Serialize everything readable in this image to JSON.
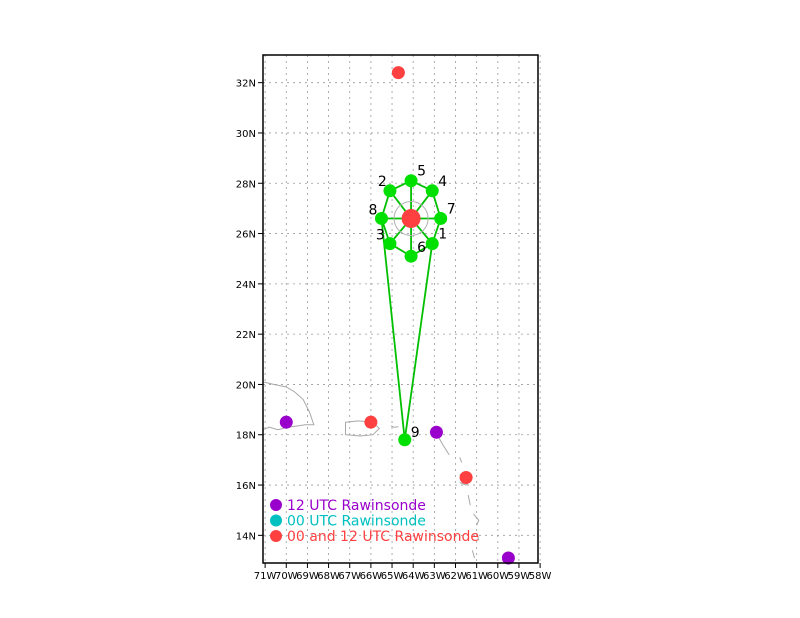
{
  "map": {
    "lat_range": [
      12.9,
      33.1
    ],
    "lon_range": [
      -71.1,
      -58.1
    ],
    "grid": true,
    "lat_ticks": [
      {
        "value": 14,
        "label": "14N"
      },
      {
        "value": 16,
        "label": "16N"
      },
      {
        "value": 18,
        "label": "18N"
      },
      {
        "value": 20,
        "label": "20N"
      },
      {
        "value": 22,
        "label": "22N"
      },
      {
        "value": 24,
        "label": "24N"
      },
      {
        "value": 26,
        "label": "26N"
      },
      {
        "value": 28,
        "label": "28N"
      },
      {
        "value": 30,
        "label": "30N"
      },
      {
        "value": 32,
        "label": "32N"
      }
    ],
    "lon_ticks": [
      {
        "value": -71,
        "label": "71W"
      },
      {
        "value": -70,
        "label": "70W"
      },
      {
        "value": -69,
        "label": "69W"
      },
      {
        "value": -68,
        "label": "68W"
      },
      {
        "value": -67,
        "label": "67W"
      },
      {
        "value": -66,
        "label": "66W"
      },
      {
        "value": -65,
        "label": "65W"
      },
      {
        "value": -64,
        "label": "64W"
      },
      {
        "value": -63,
        "label": "63W"
      },
      {
        "value": -62,
        "label": "62W"
      },
      {
        "value": -61,
        "label": "61W"
      },
      {
        "value": -60,
        "label": "60W"
      },
      {
        "value": -59,
        "label": "59W"
      },
      {
        "value": -58,
        "label": "58W"
      }
    ],
    "center": {
      "lat": 26.6,
      "lon": -64.1
    },
    "sample_points": [
      {
        "label": "1",
        "lat": 25.6,
        "lon": -63.1
      },
      {
        "label": "2",
        "lat": 27.7,
        "lon": -65.1
      },
      {
        "label": "3",
        "lat": 25.6,
        "lon": -65.1
      },
      {
        "label": "4",
        "lat": 27.7,
        "lon": -63.1
      },
      {
        "label": "5",
        "lat": 28.1,
        "lon": -64.1
      },
      {
        "label": "6",
        "lat": 25.1,
        "lon": -64.1
      },
      {
        "label": "7",
        "lat": 26.6,
        "lon": -62.7
      },
      {
        "label": "8",
        "lat": 26.6,
        "lon": -65.5
      },
      {
        "label": "9",
        "lat": 17.8,
        "lon": -64.4
      }
    ],
    "connections": [
      [
        "1",
        "9"
      ],
      [
        "8",
        "9"
      ],
      [
        "1",
        "6"
      ],
      [
        "6",
        "3"
      ],
      [
        "3",
        "8"
      ],
      [
        "8",
        "2"
      ],
      [
        "2",
        "5"
      ],
      [
        "5",
        "4"
      ],
      [
        "4",
        "7"
      ],
      [
        "7",
        "1"
      ]
    ],
    "stations": [
      {
        "type": "12",
        "lat": 18.5,
        "lon": -70.0
      },
      {
        "type": "00_12",
        "lat": 18.5,
        "lon": -66.0
      },
      {
        "type": "12",
        "lat": 18.1,
        "lon": -62.9
      },
      {
        "type": "00_12",
        "lat": 32.4,
        "lon": -64.7
      },
      {
        "type": "00_12",
        "lat": 16.3,
        "lon": -61.5
      },
      {
        "type": "12",
        "lat": 13.1,
        "lon": -59.5
      }
    ],
    "legend": [
      {
        "type": "12",
        "label": "12 UTC Rawinsonde",
        "color": "#9900cc"
      },
      {
        "type": "00",
        "label": "00 UTC Rawinsonde",
        "color": "#00c0c0"
      },
      {
        "type": "00_12",
        "label": "00 and 12 UTC Rawinsonde",
        "color": "#ff4040"
      }
    ],
    "colors": {
      "sample_point": "#00e000",
      "connection_line": "#00c000",
      "center": "#ff4040",
      "coast": "#a8a8a8",
      "grid": "#9a9a9a"
    }
  }
}
